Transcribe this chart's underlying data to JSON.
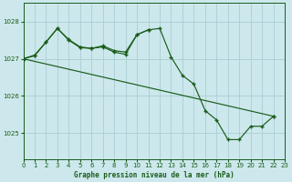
{
  "title": "Graphe pression niveau de la mer (hPa)",
  "bg_color": "#cce8ec",
  "grid_color": "#aacdd4",
  "line_color": "#1a5c1a",
  "xlim": [
    0,
    23
  ],
  "ylim": [
    1024.3,
    1028.5
  ],
  "yticks": [
    1025,
    1026,
    1027,
    1028
  ],
  "xticks": [
    0,
    1,
    2,
    3,
    4,
    5,
    6,
    7,
    8,
    9,
    10,
    11,
    12,
    13,
    14,
    15,
    16,
    17,
    18,
    19,
    20,
    21,
    22,
    23
  ],
  "line1_x": [
    0,
    1,
    2,
    3,
    4,
    5,
    6,
    7,
    8,
    9,
    10,
    11,
    12,
    13,
    14,
    15,
    16,
    17,
    18,
    19,
    20,
    21,
    22
  ],
  "line1_y": [
    1027.0,
    1027.1,
    1027.45,
    1027.82,
    1027.5,
    1027.3,
    1027.28,
    1027.32,
    1027.18,
    1027.12,
    1027.65,
    1027.78,
    1027.82,
    1027.05,
    1026.55,
    1026.32,
    1025.6,
    1025.35,
    1024.82,
    1024.82,
    1025.18,
    1025.18,
    1025.45
  ],
  "line2_x": [
    0,
    1,
    2,
    3,
    4,
    5,
    6,
    7,
    8,
    9,
    10,
    11
  ],
  "line2_y": [
    1027.0,
    1027.08,
    1027.45,
    1027.82,
    1027.52,
    1027.32,
    1027.28,
    1027.35,
    1027.22,
    1027.18,
    1027.65,
    1027.78
  ],
  "line3_x": [
    0,
    22
  ],
  "line3_y": [
    1027.0,
    1025.45
  ],
  "font_family": "monospace"
}
